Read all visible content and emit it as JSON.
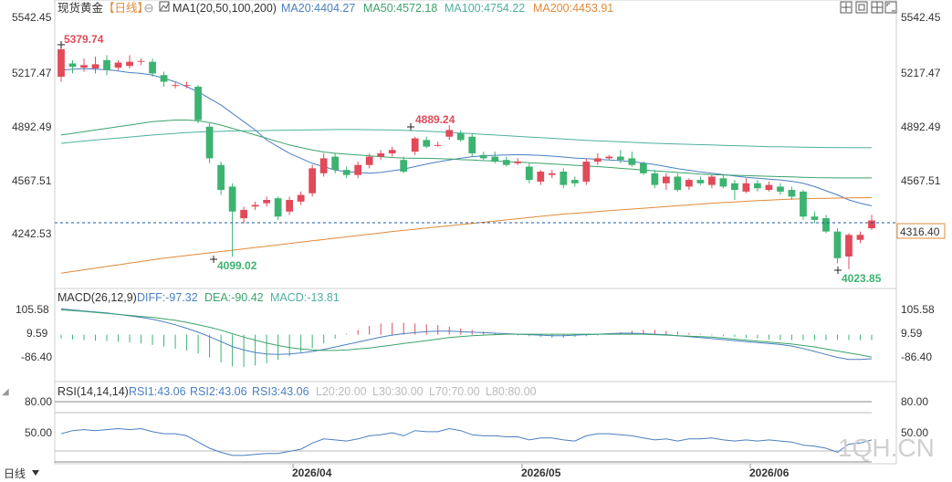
{
  "header": {
    "title": "现货黄金",
    "period": "【日线】",
    "ma_indicator": "MA1(20,50,100,200)",
    "ma20": "MA20:4404.27",
    "ma50": "MA50:4572.18",
    "ma100": "MA100:4754.22",
    "ma200": "MA200:4453.91"
  },
  "macd_header": {
    "name": "MACD(26,12,9)",
    "diff": "DIFF:-97.32",
    "dea": "DEA:-90.42",
    "macd": "MACD:-13.81"
  },
  "rsi_header": {
    "name": "RSI(14,14,14)",
    "rsi1": "RSI1:43.06",
    "rsi2": "RSI2:43.06",
    "rsi3": "RSI3:43.06",
    "l20": "L20:20.00",
    "l30": "L30:30.00",
    "l70": "L70:70.00",
    "l80": "L80:80.00"
  },
  "footer": {
    "period": "日线",
    "watermark": "1QH.CN"
  },
  "colors": {
    "up": "#e04a59",
    "down": "#3cb371",
    "ma20": "#4a7fc1",
    "ma50": "#3aa36a",
    "ma100": "#4fb0a0",
    "ma200": "#e08a3a",
    "price_line": "#1e5aa8",
    "text_up": "#e04a59",
    "text_down": "#3cb371"
  },
  "chart_data": [
    {
      "type": "candlestick",
      "title": "现货黄金",
      "y_ticks": [
        "5542.45",
        "5217.47",
        "4892.49",
        "4567.51",
        "4242.53"
      ],
      "ylim": [
        4000,
        5600
      ],
      "x_ticks": [
        "2026/04",
        "2026/05",
        "2026/06"
      ],
      "current_price": "4316.40",
      "annotations": {
        "high": "5379.74",
        "low1": "4099.02",
        "mid_high": "4889.24",
        "low2": "4023.85"
      },
      "candles": [
        [
          5180,
          5345,
          5379.74,
          5150
        ],
        [
          5260,
          5240,
          5280,
          5200
        ],
        [
          5235,
          5250,
          5290,
          5210
        ],
        [
          5230,
          5255,
          5300,
          5200
        ],
        [
          5280,
          5220,
          5310,
          5190
        ],
        [
          5235,
          5265,
          5280,
          5220
        ],
        [
          5245,
          5270,
          5310,
          5230
        ],
        [
          5275,
          5275,
          5290,
          5250
        ],
        [
          5270,
          5200,
          5290,
          5180
        ],
        [
          5190,
          5150,
          5210,
          5120
        ],
        [
          5130,
          5130,
          5150,
          5110
        ],
        [
          5130,
          5130,
          5150,
          5110
        ],
        [
          5120,
          4920,
          5130,
          4900
        ],
        [
          4880,
          4690,
          4900,
          4660
        ],
        [
          4650,
          4500,
          4670,
          4470
        ],
        [
          4520,
          4370,
          4540,
          4099.02
        ],
        [
          4330,
          4380,
          4400,
          4300
        ],
        [
          4400,
          4410,
          4430,
          4380
        ],
        [
          4420,
          4440,
          4460,
          4400
        ],
        [
          4450,
          4340,
          4460,
          4320
        ],
        [
          4370,
          4440,
          4460,
          4350
        ],
        [
          4430,
          4470,
          4490,
          4410
        ],
        [
          4480,
          4630,
          4650,
          4460
        ],
        [
          4600,
          4690,
          4720,
          4580
        ],
        [
          4700,
          4620,
          4720,
          4600
        ],
        [
          4620,
          4590,
          4640,
          4570
        ],
        [
          4590,
          4650,
          4670,
          4570
        ],
        [
          4650,
          4700,
          4720,
          4630
        ],
        [
          4700,
          4720,
          4740,
          4680
        ],
        [
          4720,
          4740,
          4760,
          4700
        ],
        [
          4680,
          4610,
          4700,
          4600
        ],
        [
          4730,
          4810,
          4820,
          4710
        ],
        [
          4800,
          4760,
          4820,
          4750
        ],
        [
          4770,
          4770,
          4790,
          4760
        ],
        [
          4820,
          4860,
          4889.24,
          4800
        ],
        [
          4840,
          4800,
          4860,
          4790
        ],
        [
          4820,
          4720,
          4840,
          4700
        ],
        [
          4710,
          4690,
          4730,
          4680
        ],
        [
          4700,
          4670,
          4730,
          4660
        ],
        [
          4680,
          4650,
          4700,
          4640
        ],
        [
          4660,
          4670,
          4690,
          4650
        ],
        [
          4640,
          4560,
          4660,
          4540
        ],
        [
          4550,
          4610,
          4620,
          4530
        ],
        [
          4590,
          4600,
          4620,
          4570
        ],
        [
          4610,
          4530,
          4630,
          4510
        ],
        [
          4560,
          4540,
          4580,
          4520
        ],
        [
          4550,
          4670,
          4690,
          4530
        ],
        [
          4670,
          4690,
          4720,
          4650
        ],
        [
          4690,
          4700,
          4710,
          4680
        ],
        [
          4700,
          4680,
          4740,
          4660
        ],
        [
          4690,
          4650,
          4730,
          4640
        ],
        [
          4660,
          4600,
          4670,
          4590
        ],
        [
          4600,
          4530,
          4620,
          4510
        ],
        [
          4540,
          4580,
          4600,
          4500
        ],
        [
          4580,
          4500,
          4600,
          4490
        ],
        [
          4520,
          4560,
          4570,
          4500
        ],
        [
          4560,
          4540,
          4580,
          4530
        ],
        [
          4530,
          4580,
          4590,
          4510
        ],
        [
          4570,
          4520,
          4590,
          4510
        ],
        [
          4540,
          4500,
          4560,
          4440
        ],
        [
          4490,
          4540,
          4570,
          4480
        ],
        [
          4540,
          4510,
          4560,
          4490
        ],
        [
          4500,
          4530,
          4550,
          4490
        ],
        [
          4520,
          4490,
          4540,
          4470
        ],
        [
          4500,
          4460,
          4520,
          4440
        ],
        [
          4490,
          4340,
          4500,
          4320
        ],
        [
          4340,
          4320,
          4370,
          4300
        ],
        [
          4330,
          4250,
          4350,
          4240
        ],
        [
          4250,
          4090,
          4270,
          4060
        ],
        [
          4100,
          4230,
          4240,
          4023.85
        ],
        [
          4200,
          4230,
          4250,
          4180
        ],
        [
          4270,
          4316.4,
          4350,
          4260
        ]
      ],
      "series": [
        {
          "name": "MA20",
          "values": [
            5220,
            5225,
            5228,
            5226,
            5222,
            5215,
            5205,
            5200,
            5190,
            5170,
            5150,
            5120,
            5090,
            5050,
            5010,
            4960,
            4910,
            4860,
            4800,
            4760,
            4720,
            4690,
            4660,
            4640,
            4620,
            4610,
            4605,
            4600,
            4605,
            4615,
            4625,
            4640,
            4655,
            4668,
            4680,
            4690,
            4700,
            4705,
            4708,
            4710,
            4712,
            4710,
            4707,
            4703,
            4698,
            4692,
            4688,
            4684,
            4680,
            4676,
            4670,
            4662,
            4652,
            4640,
            4628,
            4618,
            4608,
            4600,
            4592,
            4584,
            4576,
            4570,
            4565,
            4560,
            4552,
            4540,
            4520,
            4495,
            4470,
            4440,
            4420,
            4404.27
          ]
        },
        {
          "name": "MA50",
          "values": [
            4830,
            4840,
            4850,
            4860,
            4870,
            4880,
            4890,
            4900,
            4910,
            4915,
            4920,
            4920,
            4915,
            4905,
            4890,
            4870,
            4850,
            4830,
            4810,
            4790,
            4770,
            4755,
            4740,
            4728,
            4720,
            4715,
            4710,
            4705,
            4700,
            4695,
            4692,
            4690,
            4690,
            4688,
            4686,
            4682,
            4680,
            4676,
            4674,
            4670,
            4668,
            4664,
            4660,
            4656,
            4652,
            4648,
            4644,
            4640,
            4635,
            4630,
            4625,
            4620,
            4615,
            4610,
            4605,
            4600,
            4595,
            4592,
            4590,
            4588,
            4586,
            4584,
            4582,
            4580,
            4578,
            4576,
            4574,
            4573,
            4572,
            4572,
            4572.2,
            4572.18
          ]
        },
        {
          "name": "MA100",
          "values": [
            4780,
            4787,
            4794,
            4800,
            4806,
            4812,
            4818,
            4824,
            4830,
            4835,
            4840,
            4845,
            4848,
            4850,
            4852,
            4854,
            4855,
            4856,
            4857,
            4858,
            4859,
            4860,
            4861,
            4862,
            4863,
            4863,
            4863,
            4862,
            4861,
            4860,
            4858,
            4856,
            4853,
            4850,
            4846,
            4842,
            4838,
            4834,
            4830,
            4826,
            4822,
            4818,
            4814,
            4810,
            4806,
            4802,
            4798,
            4795,
            4792,
            4789,
            4786,
            4783,
            4780,
            4778,
            4776,
            4774,
            4772,
            4770,
            4768,
            4766,
            4764,
            4762,
            4760,
            4759,
            4758,
            4757,
            4756,
            4755,
            4755,
            4754.5,
            4754.3,
            4754.22
          ]
        },
        {
          "name": "MA200",
          "values": [
            4000,
            4010,
            4020,
            4030,
            4040,
            4050,
            4060,
            4070,
            4080,
            4090,
            4098,
            4106,
            4114,
            4122,
            4130,
            4138,
            4146,
            4154,
            4162,
            4170,
            4178,
            4186,
            4194,
            4202,
            4210,
            4218,
            4226,
            4234,
            4242,
            4250,
            4257,
            4264,
            4271,
            4278,
            4285,
            4292,
            4299,
            4306,
            4313,
            4320,
            4327,
            4334,
            4341,
            4348,
            4355,
            4360,
            4365,
            4370,
            4375,
            4380,
            4385,
            4390,
            4395,
            4400,
            4405,
            4410,
            4415,
            4420,
            4424,
            4428,
            4432,
            4436,
            4439,
            4442,
            4445,
            4447,
            4449,
            4450,
            4451,
            4452,
            4453,
            4453.91
          ]
        }
      ]
    },
    {
      "type": "bar+line",
      "title": "MACD(26,12,9)",
      "y_ticks": [
        "105.58",
        "9.59",
        "-86.40"
      ],
      "series": [
        {
          "name": "MACD",
          "values": [
            -10,
            -12,
            -14,
            -15,
            -16,
            -18,
            -20,
            -22,
            -26,
            -30,
            -36,
            -40,
            -48,
            -58,
            -70,
            -80,
            -82,
            -78,
            -72,
            -64,
            -55,
            -44,
            -34,
            -22,
            -10,
            2,
            12,
            22,
            28,
            30,
            30,
            28,
            26,
            24,
            20,
            16,
            12,
            8,
            4,
            0,
            -2,
            -4,
            -6,
            -8,
            -8,
            -6,
            -4,
            -2,
            2,
            6,
            10,
            12,
            12,
            10,
            8,
            4,
            2,
            -2,
            -4,
            -6,
            -8,
            -10,
            -12,
            -14,
            -14,
            -14,
            -14,
            -14,
            -13,
            -13.5,
            -13.8,
            -13.81
          ]
        },
        {
          "name": "DIFF",
          "values": [
            105,
            100,
            96,
            92,
            88,
            82,
            76,
            70,
            62,
            52,
            40,
            26,
            10,
            -8,
            -28,
            -48,
            -62,
            -72,
            -78,
            -80,
            -78,
            -74,
            -68,
            -60,
            -50,
            -40,
            -30,
            -20,
            -10,
            -2,
            4,
            8,
            12,
            14,
            14,
            12,
            10,
            8,
            6,
            4,
            2,
            0,
            -2,
            -4,
            -4,
            -2,
            0,
            2,
            4,
            6,
            6,
            4,
            2,
            0,
            -4,
            -8,
            -12,
            -16,
            -20,
            -24,
            -28,
            -32,
            -36,
            -40,
            -46,
            -56,
            -68,
            -80,
            -92,
            -100,
            -100,
            -97.32
          ]
        },
        {
          "name": "DEA",
          "values": [
            100,
            97,
            94,
            90,
            86,
            82,
            78,
            74,
            70,
            64,
            58,
            50,
            40,
            30,
            18,
            4,
            -10,
            -22,
            -34,
            -44,
            -52,
            -58,
            -62,
            -64,
            -64,
            -62,
            -58,
            -54,
            -48,
            -42,
            -36,
            -30,
            -24,
            -18,
            -12,
            -8,
            -4,
            -2,
            0,
            2,
            2,
            2,
            2,
            2,
            2,
            2,
            2,
            2,
            2,
            2,
            2,
            2,
            0,
            -2,
            -4,
            -6,
            -8,
            -10,
            -14,
            -18,
            -22,
            -26,
            -30,
            -34,
            -38,
            -44,
            -50,
            -58,
            -66,
            -74,
            -82,
            -90.42
          ]
        }
      ]
    },
    {
      "type": "line",
      "title": "RSI(14,14,14)",
      "y_ticks": [
        "80.00",
        "50.00"
      ],
      "series": [
        {
          "name": "RSI",
          "values": [
            49,
            52,
            53,
            52,
            53,
            54,
            53,
            54,
            51,
            49,
            49,
            47,
            41,
            35,
            31,
            28,
            28,
            29,
            30,
            30,
            32,
            34,
            40,
            44,
            43,
            42,
            44,
            47,
            48,
            50,
            47,
            52,
            51,
            51,
            54,
            52,
            48,
            47,
            47,
            46,
            46,
            43,
            45,
            45,
            43,
            42,
            47,
            49,
            49,
            48,
            47,
            45,
            43,
            44,
            42,
            44,
            44,
            45,
            43,
            42,
            43,
            42,
            43,
            42,
            41,
            38,
            37,
            35,
            31,
            39,
            40,
            43.06
          ]
        }
      ]
    }
  ]
}
